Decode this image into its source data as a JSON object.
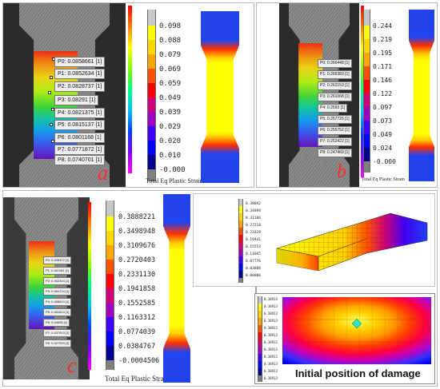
{
  "panel_a": {
    "letter": "a",
    "probes": [
      "P0: 0.0858661 [1]",
      "P1: 0.0852634 [1]",
      "P2: 0.0828737 [1]",
      "P3: 0.08291 [1]",
      "P4: 0.0821375 [1]",
      "P5: 0.0815137 [1]",
      "P6: 0.0801168 [1]",
      "P7: 0.0771872 [1]",
      "P8: 0.0740701 [1]"
    ],
    "scale_labels": [
      "0.098",
      "0.088",
      "0.079",
      "0.069",
      "0.059",
      "0.049",
      "0.039",
      "0.029",
      "0.020",
      "0.010",
      "-0.000"
    ],
    "scale_title": "Total Eq Plastic Strain"
  },
  "panel_b": {
    "letter": "b",
    "probes": [
      "P0: 0.266448 [1]",
      "P1: 0.265383 [1]",
      "P2: 0.262153 [1]",
      "P3: 0.261068 [1]",
      "P4: 0.2593 [1]",
      "P5: 0.257725 [1]",
      "P6: 0.255752 [1]",
      "P7: 0.252422 [1]",
      "P8: 0.247469 [1]"
    ],
    "scale_labels": [
      "0.244",
      "0.219",
      "0.195",
      "0.171",
      "0.146",
      "0.122",
      "0.097",
      "0.073",
      "0.049",
      "0.024",
      "-0.000"
    ],
    "scale_title": "Total Eq Plastic Strain"
  },
  "panel_c": {
    "letter": "c",
    "probes": [
      "P0: 0.496372 [1]",
      "P1: 0.461181 [1]",
      "P2: 0.462444 [1]",
      "P3: 0.464724 [1]",
      "P4: 0.458624 [1]",
      "P5: 0.451614 [1]",
      "P6: 0.44636 [1]",
      "P7: 0.437913 [1]",
      "P8: 0.427933 [1]"
    ],
    "scale_labels": [
      "0.3888221",
      "0.3498948",
      "0.3109676",
      "0.2720403",
      "0.2331130",
      "0.1941858",
      "0.1552585",
      "0.1163312",
      "0.0774039",
      "0.0384767",
      "-0.0004506"
    ],
    "scale_title": "Total Eq Plastic Strain"
  },
  "model_3d": {
    "scale_labels": [
      "0.38892",
      "0.34894",
      "0.31106",
      "0.27218",
      "0.23329",
      "0.19441",
      "0.15553",
      "0.11665",
      "0.07776",
      "0.03888",
      "0.00000"
    ]
  },
  "damage_view": {
    "scale_labels": [
      "0.38914",
      "0.38913",
      "0.38913",
      "0.38913",
      "0.38913",
      "0.38913",
      "0.38913",
      "0.38913",
      "0.38913",
      "0.38913",
      "0.38913",
      "0.38913"
    ],
    "caption": "Initial position of damage"
  },
  "colors": {
    "contour_ramp": [
      "#ff0000",
      "#ff5a00",
      "#ffa000",
      "#ffd800",
      "#e8ff00",
      "#a0ff00",
      "#30e000",
      "#00c890",
      "#00a0ff",
      "#2040ff",
      "#3000c0"
    ],
    "legend_ramp": [
      "#c8c8c8",
      "#ffff00",
      "#ffd700",
      "#ffa500",
      "#ff5000",
      "#ff0000",
      "#d0007a",
      "#a000c0",
      "#4000ff",
      "#0000ff",
      "#000090",
      "#808080"
    ],
    "accent_letter": "#ff2a2a"
  }
}
